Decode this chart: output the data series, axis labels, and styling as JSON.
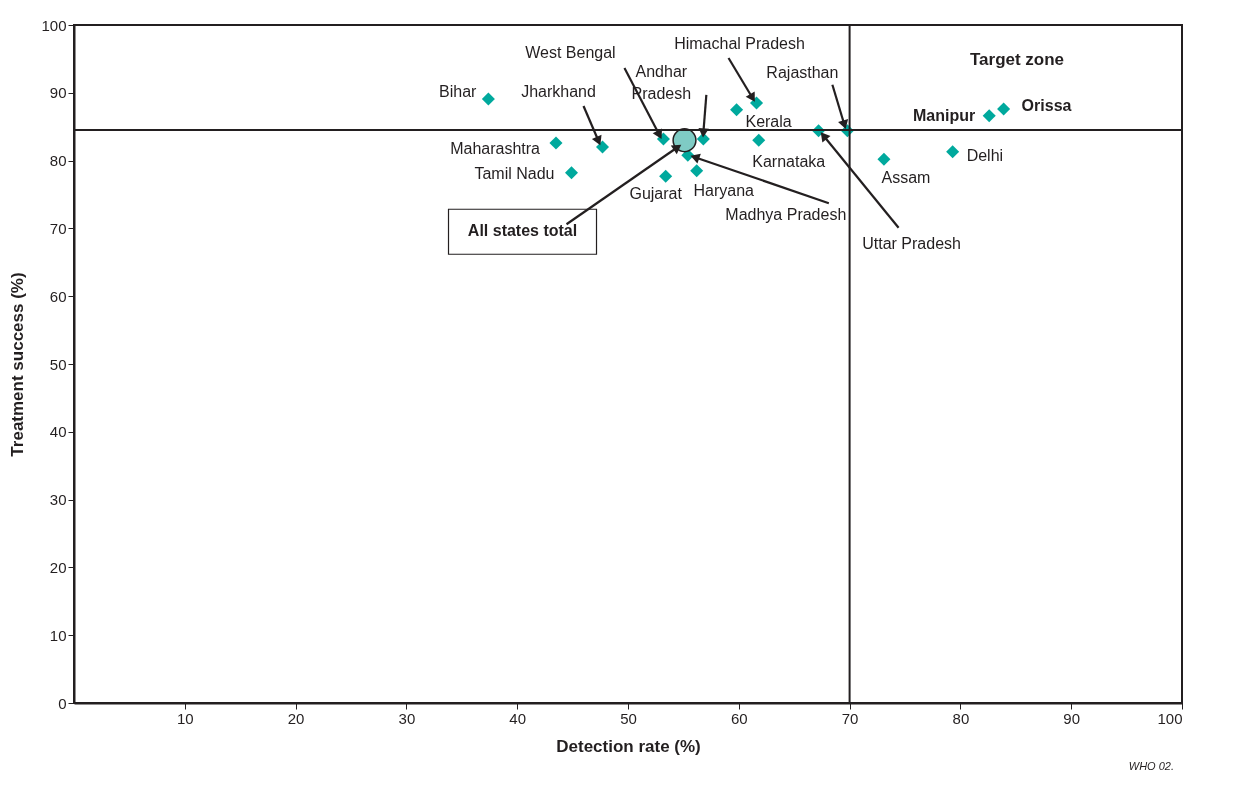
{
  "chart_data": {
    "type": "scatter",
    "xlabel": "Detection rate (%)",
    "ylabel": "Treatment success (%)",
    "xlim": [
      0,
      100
    ],
    "ylim": [
      0,
      100
    ],
    "xticks": [
      10,
      20,
      30,
      40,
      50,
      60,
      70,
      80,
      90,
      100
    ],
    "yticks": [
      0,
      10,
      20,
      30,
      40,
      50,
      60,
      70,
      80,
      90,
      100
    ],
    "grid": false,
    "marker": "diamond",
    "series": [
      {
        "color": "#00a99d",
        "x": [
          37.4,
          43.5,
          47.7,
          44.9,
          53.2,
          56.8,
          53.4,
          55.4,
          56.2,
          59.8,
          61.6,
          61.8,
          67.2,
          69.8,
          73.1,
          79.3,
          82.6,
          83.9
        ],
        "values": [
          89.1,
          82.6,
          82.0,
          78.2,
          83.2,
          83.2,
          77.7,
          80.8,
          78.5,
          87.5,
          88.5,
          83.0,
          84.4,
          84.4,
          80.2,
          81.3,
          86.6,
          87.6
        ]
      },
      {
        "marker": "circle",
        "color": "#7fcbc4",
        "x": [
          55.1
        ],
        "values": [
          83.0
        ]
      }
    ],
    "ref_lines": [
      {
        "axis": "x",
        "value": 70,
        "color": "#231f20"
      },
      {
        "axis": "y",
        "value": 84.5,
        "color": "#231f20"
      }
    ],
    "annotations": [
      {
        "text": "Bihar",
        "x": 37.4,
        "y": 89.1
      },
      {
        "text": "Maharashtra",
        "x": 43.5,
        "y": 82.6
      },
      {
        "text": "Jharkhand",
        "x": 47.7,
        "y": 82.0
      },
      {
        "text": "Tamil Nadu",
        "x": 44.9,
        "y": 78.2
      },
      {
        "text": "West Bengal",
        "x": 53.2,
        "y": 83.2
      },
      {
        "text": "Andhar Pradesh",
        "x": 56.8,
        "y": 83.2
      },
      {
        "text": "Gujarat",
        "x": 53.4,
        "y": 77.7
      },
      {
        "text": "Madhya Pradesh",
        "x": 55.4,
        "y": 80.8
      },
      {
        "text": "Haryana",
        "x": 56.2,
        "y": 78.5
      },
      {
        "text": "Kerala",
        "x": 59.8,
        "y": 87.5
      },
      {
        "text": "Himachal Pradesh",
        "x": 61.6,
        "y": 88.5
      },
      {
        "text": "Karnataka",
        "x": 61.8,
        "y": 83.0
      },
      {
        "text": "Uttar Pradesh",
        "x": 67.2,
        "y": 84.4
      },
      {
        "text": "Rajasthan",
        "x": 69.8,
        "y": 84.4
      },
      {
        "text": "Assam",
        "x": 73.1,
        "y": 80.2
      },
      {
        "text": "Delhi",
        "x": 79.3,
        "y": 81.3
      },
      {
        "text": "Manipur",
        "x": 82.6,
        "y": 86.6
      },
      {
        "text": "Orissa",
        "x": 83.9,
        "y": 87.6
      },
      "All states total",
      "Target zone",
      "WHO 02."
    ]
  }
}
